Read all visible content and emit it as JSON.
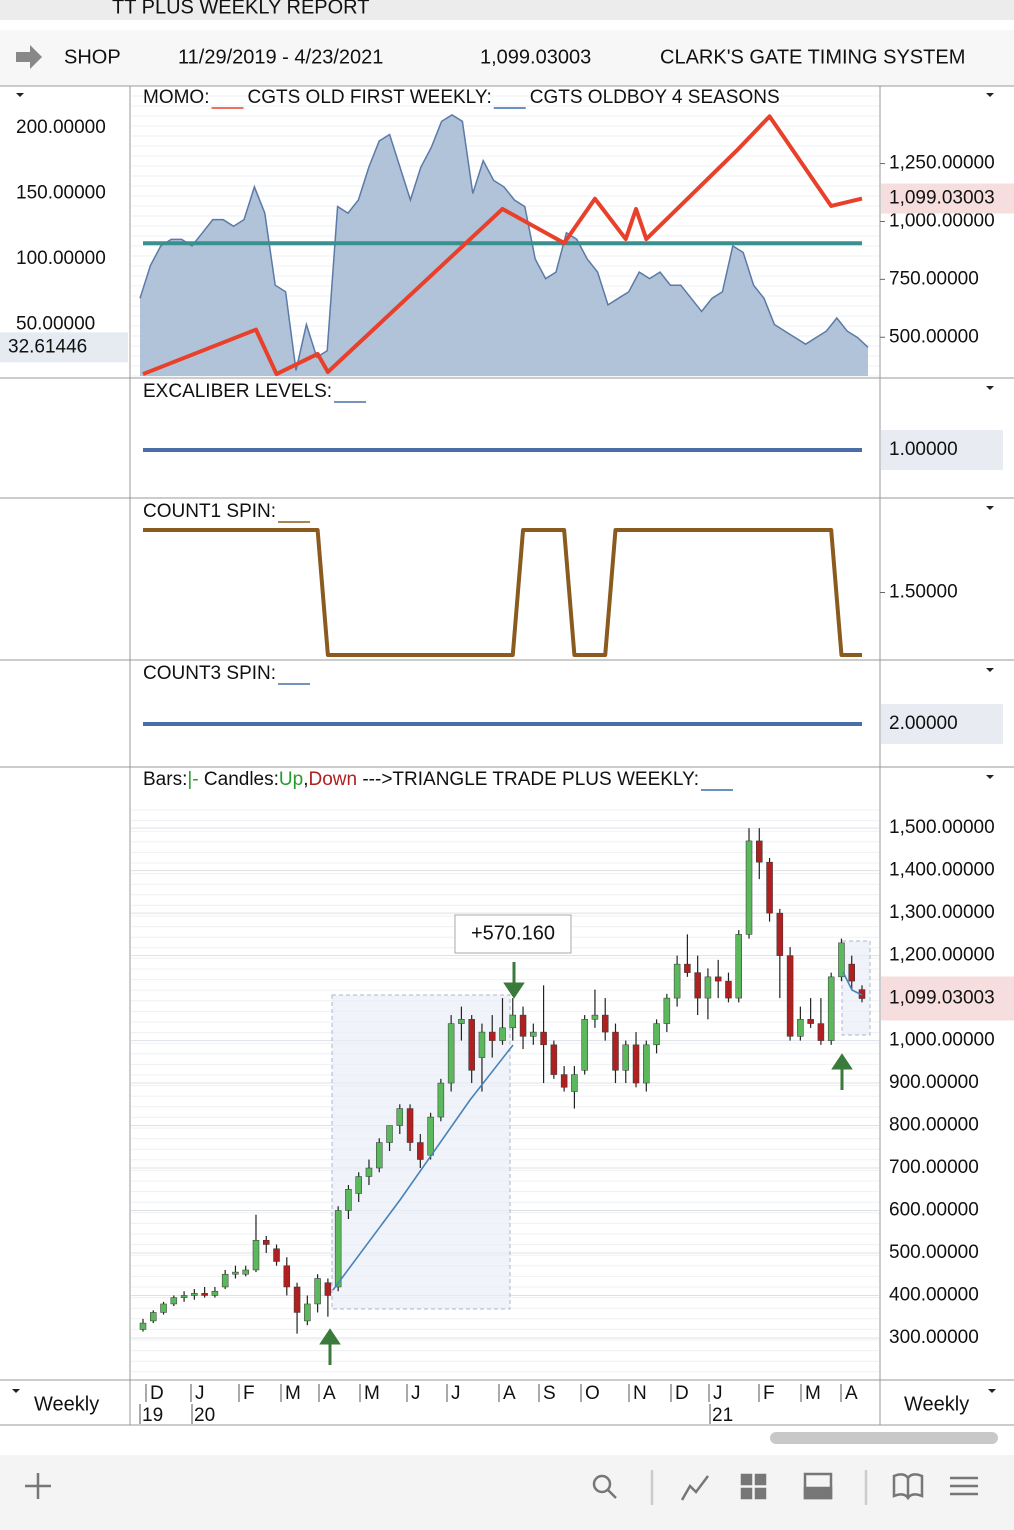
{
  "title": "TT PLUS WEEKLY REPORT",
  "header": {
    "symbol": "SHOP",
    "date_range": "11/29/2019 - 4/23/2021",
    "last": "1,099.03003",
    "system": "CLARK'S GATE TIMING SYSTEM"
  },
  "momo": {
    "legend": [
      "MOMO:",
      "CGTS OLD FIRST WEEKLY:",
      "CGTS OLDBOY 4 SEASONS"
    ],
    "ylim": [
      9.2,
      232
    ],
    "yticks": [
      {
        "value": 200,
        "label": "200.00000"
      },
      {
        "value": 150,
        "label": "150.00000"
      },
      {
        "value": 100,
        "label": "100.00000"
      },
      {
        "value": 50,
        "label": "50.00000"
      }
    ],
    "y2lim": [
      324,
      1585
    ],
    "y2ticks": [
      {
        "value": 1250,
        "label": "1,250.00000"
      },
      {
        "value": 1000,
        "label": "1,000.00000"
      },
      {
        "value": 750,
        "label": "750.00000"
      },
      {
        "value": 500,
        "label": "500.00000"
      }
    ],
    "area": {
      "color": "#a9bcd4",
      "values": [
        70,
        95,
        110,
        115,
        115,
        110,
        120,
        130,
        130,
        125,
        130,
        155,
        135,
        80,
        75,
        15,
        50,
        25,
        30,
        140,
        135,
        145,
        170,
        190,
        195,
        170,
        145,
        170,
        185,
        205,
        210,
        205,
        150,
        175,
        160,
        155,
        145,
        140,
        100,
        85,
        90,
        120,
        115,
        100,
        90,
        65,
        70,
        75,
        90,
        85,
        90,
        80,
        80,
        70,
        60,
        70,
        75,
        110,
        105,
        80,
        70,
        50,
        45,
        40,
        35,
        40,
        45,
        55,
        45,
        40,
        32.61446
      ]
    },
    "level": {
      "color": "#3a8f8f",
      "value": 112
    },
    "cgts": {
      "color": "#e8402a",
      "x": [
        0,
        11,
        13,
        17,
        18,
        35,
        41,
        44,
        47,
        48,
        49,
        54,
        58,
        61,
        67,
        70
      ],
      "values": [
        341,
        533,
        341,
        428,
        350,
        1054,
        907,
        1098,
        924,
        1054,
        924,
        1141,
        1315,
        1454,
        1067,
        1099.03003
      ]
    },
    "last_left": {
      "value": 32.61446,
      "label": "32.61446"
    },
    "last_right": {
      "value": 1099.03003,
      "label": "1,099.03003"
    }
  },
  "excaliber": {
    "legend": "EXCALIBER LEVELS:",
    "color": "#4a6ea8",
    "ylim": [
      0,
      2.5
    ],
    "value": 1,
    "label": "1.00000"
  },
  "count1": {
    "legend": "COUNT1 SPIN:",
    "color": "#8b5a1e",
    "ylim": [
      0.96,
      2.256
    ],
    "yticks": [
      {
        "value": 1.5,
        "label": "1.50000"
      }
    ],
    "values": [
      2,
      2,
      2,
      2,
      2,
      2,
      2,
      2,
      2,
      2,
      2,
      2,
      2,
      2,
      2,
      2,
      2,
      2,
      1,
      1,
      1,
      1,
      1,
      1,
      1,
      1,
      1,
      1,
      1,
      1,
      1,
      1,
      1,
      1,
      1,
      1,
      1,
      2,
      2,
      2,
      2,
      2,
      1,
      1,
      1,
      1,
      2,
      2,
      2,
      2,
      2,
      2,
      2,
      2,
      2,
      2,
      2,
      2,
      2,
      2,
      2,
      2,
      2,
      2,
      2,
      2,
      2,
      2,
      1,
      1,
      1
    ]
  },
  "count3": {
    "legend": "COUNT3 SPIN:",
    "color": "#4a6ea8",
    "ylim": [
      0,
      4.98
    ],
    "value": 2,
    "label": "2.00000"
  },
  "price": {
    "legend": [
      {
        "text": "Bars:",
        "color": "#111"
      },
      {
        "text": "|-",
        "color": "#2a9a2a"
      },
      {
        "text": " Candles:",
        "color": "#111"
      },
      {
        "text": "Up",
        "color": "#2a9a2a"
      },
      {
        "text": ",",
        "color": "#111"
      },
      {
        "text": "Down",
        "color": "#b02020"
      },
      {
        "text": " --->TRIANGLE TRADE PLUS WEEKLY:",
        "color": "#111"
      }
    ],
    "up_color": "#5cb85c",
    "down_color": "#b02020",
    "ylim": [
      201,
      1644
    ],
    "yticks": [
      {
        "value": 1500,
        "label": "1,500.00000"
      },
      {
        "value": 1400,
        "label": "1,400.00000"
      },
      {
        "value": 1300,
        "label": "1,300.00000"
      },
      {
        "value": 1200,
        "label": "1,200.00000"
      },
      {
        "value": 1000,
        "label": "1,000.00000"
      },
      {
        "value": 900,
        "label": "900.00000"
      },
      {
        "value": 800,
        "label": "800.00000"
      },
      {
        "value": 700,
        "label": "700.00000"
      },
      {
        "value": 600,
        "label": "600.00000"
      },
      {
        "value": 500,
        "label": "500.00000"
      },
      {
        "value": 400,
        "label": "400.00000"
      },
      {
        "value": 300,
        "label": "300.00000"
      }
    ],
    "candles": [
      [
        320,
        345,
        315,
        335
      ],
      [
        340,
        365,
        335,
        360
      ],
      [
        360,
        385,
        355,
        380
      ],
      [
        380,
        400,
        375,
        395
      ],
      [
        395,
        410,
        385,
        400
      ],
      [
        400,
        415,
        390,
        405
      ],
      [
        405,
        420,
        395,
        400
      ],
      [
        400,
        420,
        395,
        410
      ],
      [
        420,
        460,
        415,
        450
      ],
      [
        450,
        470,
        440,
        455
      ],
      [
        450,
        470,
        445,
        460
      ],
      [
        460,
        590,
        455,
        530
      ],
      [
        530,
        540,
        500,
        520
      ],
      [
        510,
        520,
        470,
        480
      ],
      [
        470,
        490,
        400,
        420
      ],
      [
        420,
        430,
        310,
        360
      ],
      [
        340,
        400,
        330,
        380
      ],
      [
        380,
        450,
        360,
        440
      ],
      [
        430,
        440,
        350,
        400
      ],
      [
        420,
        610,
        410,
        600
      ],
      [
        600,
        660,
        580,
        650
      ],
      [
        640,
        690,
        620,
        680
      ],
      [
        680,
        720,
        660,
        700
      ],
      [
        700,
        770,
        690,
        760
      ],
      [
        760,
        800,
        740,
        800
      ],
      [
        800,
        850,
        780,
        840
      ],
      [
        840,
        850,
        740,
        760
      ],
      [
        760,
        780,
        700,
        720
      ],
      [
        730,
        830,
        720,
        820
      ],
      [
        820,
        910,
        810,
        900
      ],
      [
        900,
        1060,
        880,
        1040
      ],
      [
        1040,
        1080,
        1000,
        1050
      ],
      [
        1050,
        1060,
        900,
        930
      ],
      [
        960,
        1040,
        880,
        1020
      ],
      [
        1020,
        1060,
        960,
        1000
      ],
      [
        1000,
        1100,
        990,
        1030
      ],
      [
        1030,
        1100,
        1000,
        1060
      ],
      [
        1060,
        1080,
        980,
        1010
      ],
      [
        1010,
        1040,
        990,
        1020
      ],
      [
        1020,
        1130,
        900,
        990
      ],
      [
        990,
        1000,
        910,
        920
      ],
      [
        920,
        940,
        880,
        890
      ],
      [
        880,
        940,
        840,
        920
      ],
      [
        930,
        1060,
        920,
        1050
      ],
      [
        1050,
        1120,
        1030,
        1060
      ],
      [
        1060,
        1100,
        1000,
        1020
      ],
      [
        1020,
        1040,
        900,
        930
      ],
      [
        930,
        1000,
        900,
        990
      ],
      [
        990,
        1020,
        890,
        900
      ],
      [
        900,
        1000,
        880,
        990
      ],
      [
        990,
        1050,
        970,
        1040
      ],
      [
        1040,
        1110,
        1020,
        1100
      ],
      [
        1100,
        1200,
        1080,
        1180
      ],
      [
        1180,
        1250,
        1150,
        1160
      ],
      [
        1160,
        1200,
        1060,
        1100
      ],
      [
        1100,
        1170,
        1050,
        1150
      ],
      [
        1150,
        1190,
        1100,
        1140
      ],
      [
        1140,
        1160,
        1090,
        1100
      ],
      [
        1100,
        1260,
        1090,
        1250
      ],
      [
        1250,
        1500,
        1240,
        1470
      ],
      [
        1470,
        1500,
        1380,
        1420
      ],
      [
        1420,
        1430,
        1280,
        1300
      ],
      [
        1300,
        1310,
        1100,
        1200
      ],
      [
        1200,
        1220,
        1000,
        1010
      ],
      [
        1010,
        1080,
        1000,
        1050
      ],
      [
        1050,
        1100,
        1030,
        1040
      ],
      [
        1040,
        1100,
        990,
        1000
      ],
      [
        1000,
        1160,
        990,
        1150
      ],
      [
        1150,
        1240,
        1140,
        1230
      ],
      [
        1180,
        1200,
        1120,
        1140
      ],
      [
        1120,
        1130,
        1090,
        1099.03003
      ]
    ],
    "annotation": "+570.160",
    "last": {
      "value": 1099.03003,
      "label": "1,099.03003"
    }
  },
  "xaxis": {
    "months": [
      "D",
      "J",
      "F",
      "M",
      "A",
      "M",
      "J",
      "J",
      "A",
      "S",
      "O",
      "N",
      "D",
      "J",
      "F",
      "M",
      "A"
    ],
    "years": [
      "19",
      "20",
      "21"
    ]
  },
  "footer": {
    "left": "Weekly",
    "right": "Weekly"
  }
}
